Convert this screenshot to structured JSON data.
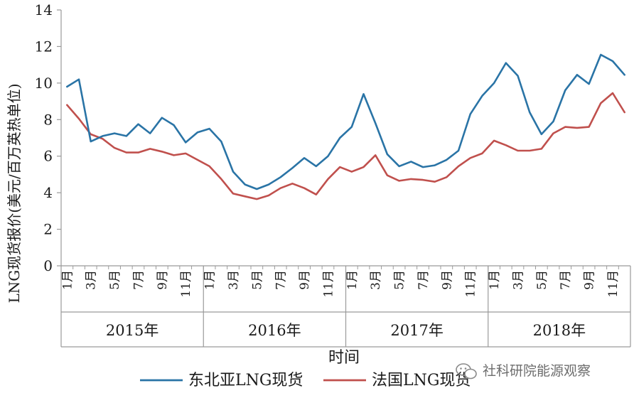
{
  "chart_data": {
    "type": "line",
    "ylabel": "LNG现货报价(美元/百万英热单位)",
    "xlabel": "时间",
    "ylim": [
      0,
      14
    ],
    "yticks": [
      0,
      2,
      4,
      6,
      8,
      10,
      12,
      14
    ],
    "month_ticks": [
      "1月",
      "3月",
      "5月",
      "7月",
      "9月",
      "11月"
    ],
    "years": [
      "2015年",
      "2016年",
      "2017年",
      "2018年"
    ],
    "grid": false,
    "legend_position": "bottom",
    "series": [
      {
        "name": "东北亚LNG现货",
        "color": "#2a74a6",
        "values": [
          9.8,
          10.2,
          6.8,
          7.1,
          7.25,
          7.1,
          7.75,
          7.25,
          8.1,
          7.7,
          6.75,
          7.3,
          7.5,
          6.8,
          5.15,
          4.45,
          4.2,
          4.45,
          4.85,
          5.35,
          5.9,
          5.45,
          6.0,
          7.0,
          7.6,
          9.4,
          7.8,
          6.1,
          5.45,
          5.7,
          5.4,
          5.5,
          5.8,
          6.3,
          8.3,
          9.3,
          10.0,
          11.1,
          10.4,
          8.4,
          7.2,
          7.9,
          9.6,
          10.45,
          9.95,
          11.55,
          11.2,
          10.45
        ]
      },
      {
        "name": "法国LNG现货",
        "color": "#c0504d",
        "values": [
          8.8,
          8.05,
          7.2,
          6.95,
          6.45,
          6.2,
          6.2,
          6.4,
          6.25,
          6.05,
          6.15,
          5.8,
          5.45,
          4.75,
          3.95,
          3.8,
          3.65,
          3.85,
          4.25,
          4.5,
          4.25,
          3.9,
          4.75,
          5.4,
          5.15,
          5.4,
          6.05,
          4.95,
          4.65,
          4.75,
          4.7,
          4.6,
          4.85,
          5.45,
          5.9,
          6.15,
          6.85,
          6.6,
          6.3,
          6.3,
          6.4,
          7.25,
          7.6,
          7.55,
          7.6,
          8.9,
          9.45,
          8.4
        ]
      }
    ]
  },
  "watermark": {
    "text": "社科研院能源观察",
    "icon": "wechat-icon"
  }
}
